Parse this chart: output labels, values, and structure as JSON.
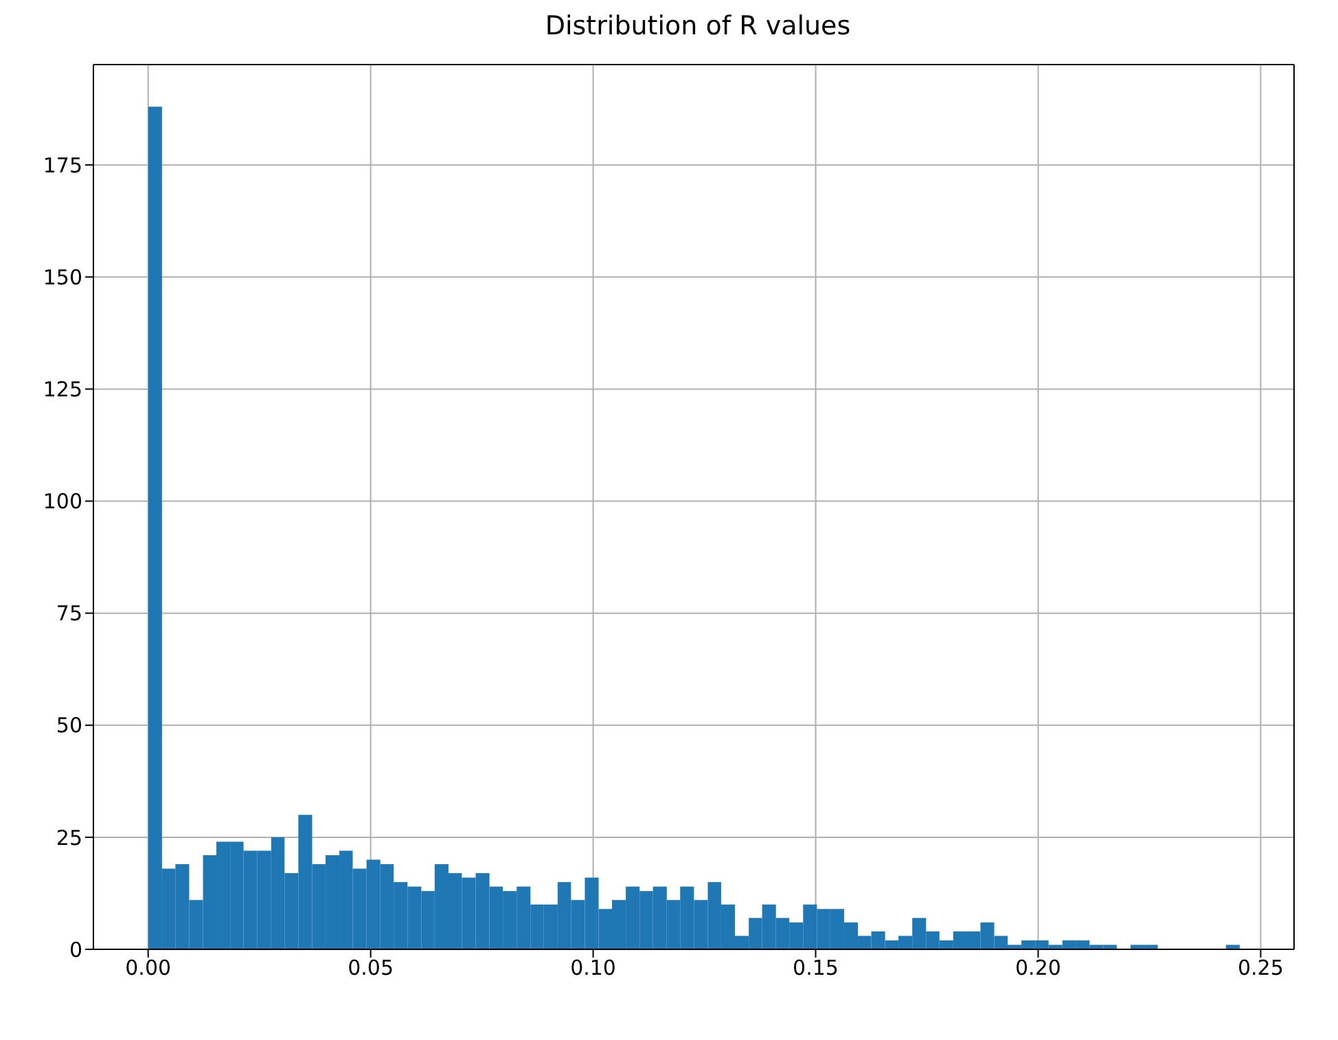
{
  "chart_data": {
    "type": "histogram",
    "title": "Distribution of R values",
    "color": "#1f77b4",
    "bins": [
      0,
      0.0031,
      0.0061,
      0.0092,
      0.0123,
      0.0153,
      0.0184,
      0.0214,
      0.0245,
      0.0276,
      0.0306,
      0.0337,
      0.0368,
      0.0398,
      0.0429,
      0.0459,
      0.049,
      0.0521,
      0.0551,
      0.0582,
      0.0613,
      0.0643,
      0.0674,
      0.0704,
      0.0735,
      0.0766,
      0.0796,
      0.0827,
      0.0858,
      0.0888,
      0.0919,
      0.0949,
      0.098,
      0.1011,
      0.1041,
      0.1072,
      0.1103,
      0.1133,
      0.1164,
      0.1194,
      0.1225,
      0.1256,
      0.1286,
      0.1317,
      0.1348,
      0.1378,
      0.1409,
      0.1439,
      0.147,
      0.1501,
      0.1531,
      0.1562,
      0.1593,
      0.1623,
      0.1654,
      0.1684,
      0.1715,
      0.1746,
      0.1776,
      0.1807,
      0.1838,
      0.1868,
      0.1899,
      0.1929,
      0.196,
      0.1991,
      0.2021,
      0.2052,
      0.2083,
      0.2113,
      0.2144,
      0.2174,
      0.2205,
      0.2236,
      0.2266,
      0.2419,
      0.245
    ],
    "values": [
      188,
      18,
      19,
      11,
      21,
      24,
      24,
      22,
      22,
      25,
      17,
      30,
      19,
      21,
      22,
      18,
      20,
      19,
      15,
      14,
      13,
      19,
      17,
      16,
      17,
      14,
      13,
      14,
      10,
      10,
      15,
      11,
      16,
      9,
      11,
      14,
      13,
      14,
      11,
      14,
      11,
      15,
      10,
      3,
      7,
      10,
      7,
      6,
      10,
      9,
      9,
      6,
      3,
      4,
      2,
      3,
      7,
      4,
      2,
      4,
      4,
      6,
      3,
      1,
      2,
      2,
      1,
      2,
      2,
      1,
      1,
      0,
      1,
      1,
      0,
      1
    ],
    "xlim": [
      -0.0123,
      0.2575
    ],
    "xticks": [
      {
        "value": 0,
        "label": "0.00"
      },
      {
        "value": 0.05,
        "label": "0.05"
      },
      {
        "value": 0.1,
        "label": "0.10"
      },
      {
        "value": 0.15,
        "label": "0.15"
      },
      {
        "value": 0.2,
        "label": "0.20"
      },
      {
        "value": 0.25,
        "label": "0.25"
      }
    ],
    "ylim": [
      0,
      197.4
    ],
    "yticks": [
      0,
      25,
      50,
      75,
      100,
      125,
      150,
      175
    ],
    "grid": true
  }
}
